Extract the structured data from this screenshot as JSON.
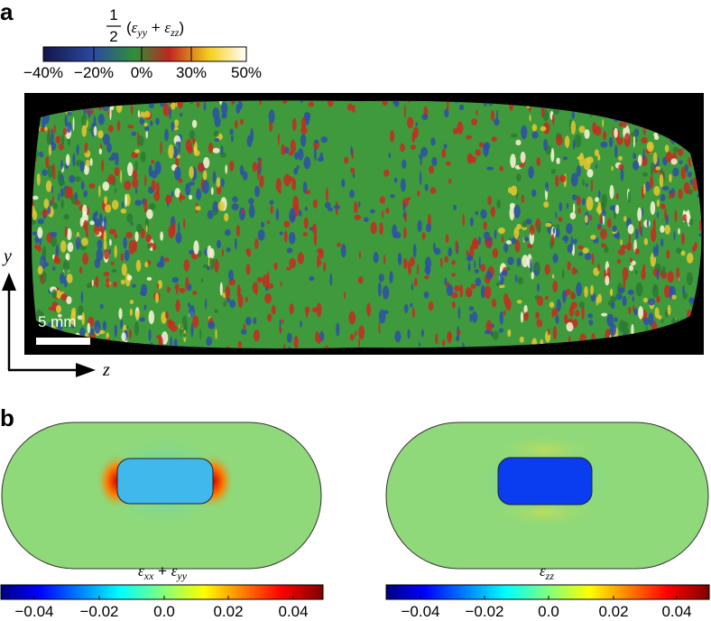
{
  "panel_a": {
    "label": "a",
    "colorbar": {
      "title": {
        "numerator": "1",
        "denominator": "2",
        "open": "(",
        "symbol1": "ε",
        "sub1": "yy",
        "operator": " + ",
        "symbol2": "ε",
        "sub2": "zz",
        "close": ")"
      },
      "ticks": [
        "−40%",
        "−20%",
        "0%",
        "30%",
        "50%"
      ]
    },
    "scale_bar": "5 mm",
    "axis_y": "y",
    "axis_z": "z"
  },
  "panel_b": {
    "label": "b",
    "left_colorbar": {
      "title": {
        "symbol1": "ε",
        "sub1": "xx",
        "operator": " + ",
        "symbol2": "ε",
        "sub2": "yy"
      },
      "ticks": [
        "−0.04",
        "−0.02",
        "0.0",
        "0.02",
        "0.04"
      ]
    },
    "right_colorbar": {
      "title": {
        "symbol": "ε",
        "sub": "zz"
      },
      "ticks": [
        "−0.04",
        "−0.02",
        "0.0",
        "0.02",
        "0.04"
      ]
    }
  }
}
